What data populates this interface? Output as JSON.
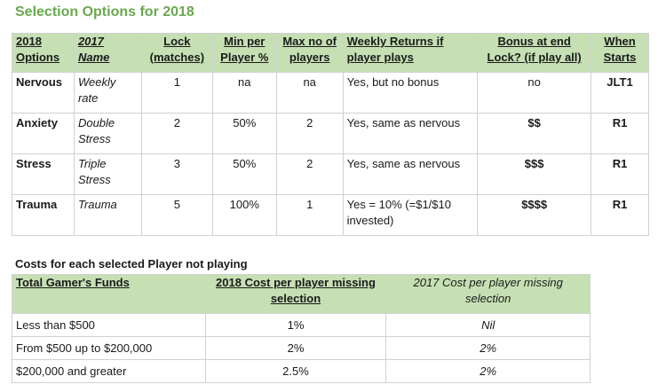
{
  "title": "Selection Options for 2018",
  "options_table": {
    "headers": [
      "2018 Options",
      "2017 Name",
      "Lock (matches)",
      "Min per Player %",
      "Max no of players",
      "Weekly Returns if player plays",
      "Bonus at end Lock? (if play all)",
      "When Starts"
    ],
    "rows": [
      [
        "Nervous",
        "Weekly rate",
        "1",
        "na",
        "na",
        "Yes, but no bonus",
        "no",
        "JLT1"
      ],
      [
        "Anxiety",
        "Double Stress",
        "2",
        "50%",
        "2",
        "Yes, same as nervous",
        "$$",
        "R1"
      ],
      [
        "Stress",
        "Triple Stress",
        "3",
        "50%",
        "2",
        "Yes, same as nervous",
        "$$$",
        "R1"
      ],
      [
        "Trauma",
        "Trauma",
        "5",
        "100%",
        "1",
        "Yes = 10% (=$1/$10 invested)",
        "$$$$",
        "R1"
      ]
    ]
  },
  "costs_title": "Costs for each selected Player not playing",
  "costs_table": {
    "headers": [
      "Total Gamer's Funds",
      "2018 Cost per player missing selection",
      "2017 Cost per player missing selection"
    ],
    "rows": [
      [
        "Less than $500",
        "1%",
        "Nil"
      ],
      [
        "From $500 up to $200,000",
        "2%",
        "2%"
      ],
      [
        "$200,000 and greater",
        "2.5%",
        "2%"
      ]
    ]
  },
  "colors": {
    "title_green": "#6aa84f",
    "header_fill": "#c6e0b4",
    "grid": "#d0d0d0"
  }
}
